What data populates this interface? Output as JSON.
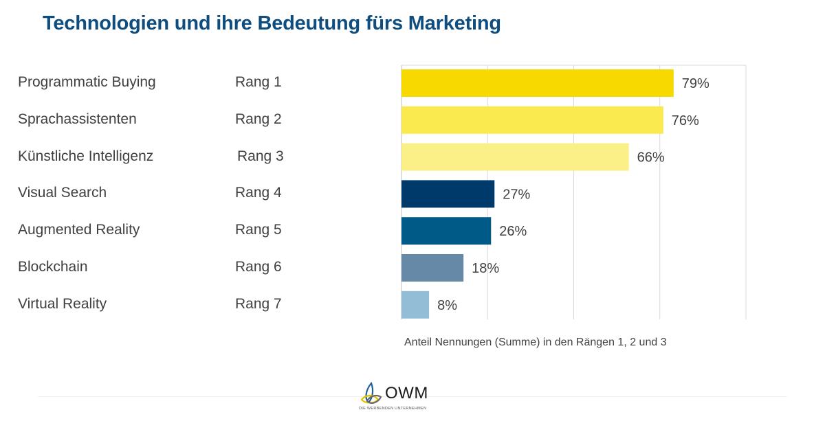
{
  "title": "Technologien und ihre Bedeutung fürs Marketing",
  "chart_data": {
    "type": "bar",
    "orientation": "horizontal",
    "categories": [
      "Programmatic Buying",
      "Sprachassistenten",
      "Künstliche Intelligenz",
      "Visual Search",
      "Augmented Reality",
      "Blockchain",
      "Virtual Reality"
    ],
    "ranks": [
      "Rang 1",
      "Rang 2",
      "Rang 3",
      "Rang 4",
      "Rang 5",
      "Rang 6",
      "Rang 7"
    ],
    "values": [
      79,
      76,
      66,
      27,
      26,
      18,
      8
    ],
    "value_labels": [
      "79%",
      "76%",
      "66%",
      "27%",
      "26%",
      "18%",
      "8%"
    ],
    "colors": [
      "#f7d900",
      "#faea50",
      "#fbf088",
      "#003a6b",
      "#005a87",
      "#6789a8",
      "#93bcd6"
    ],
    "xlim": [
      0,
      100
    ],
    "grid": true,
    "xlabel": "Anteil Nennungen (Summe) in den Rängen 1, 2 und 3"
  },
  "logo": {
    "text": "OWM",
    "subtitle": "DIE WERBENDEN UNTERNEHMEN"
  }
}
